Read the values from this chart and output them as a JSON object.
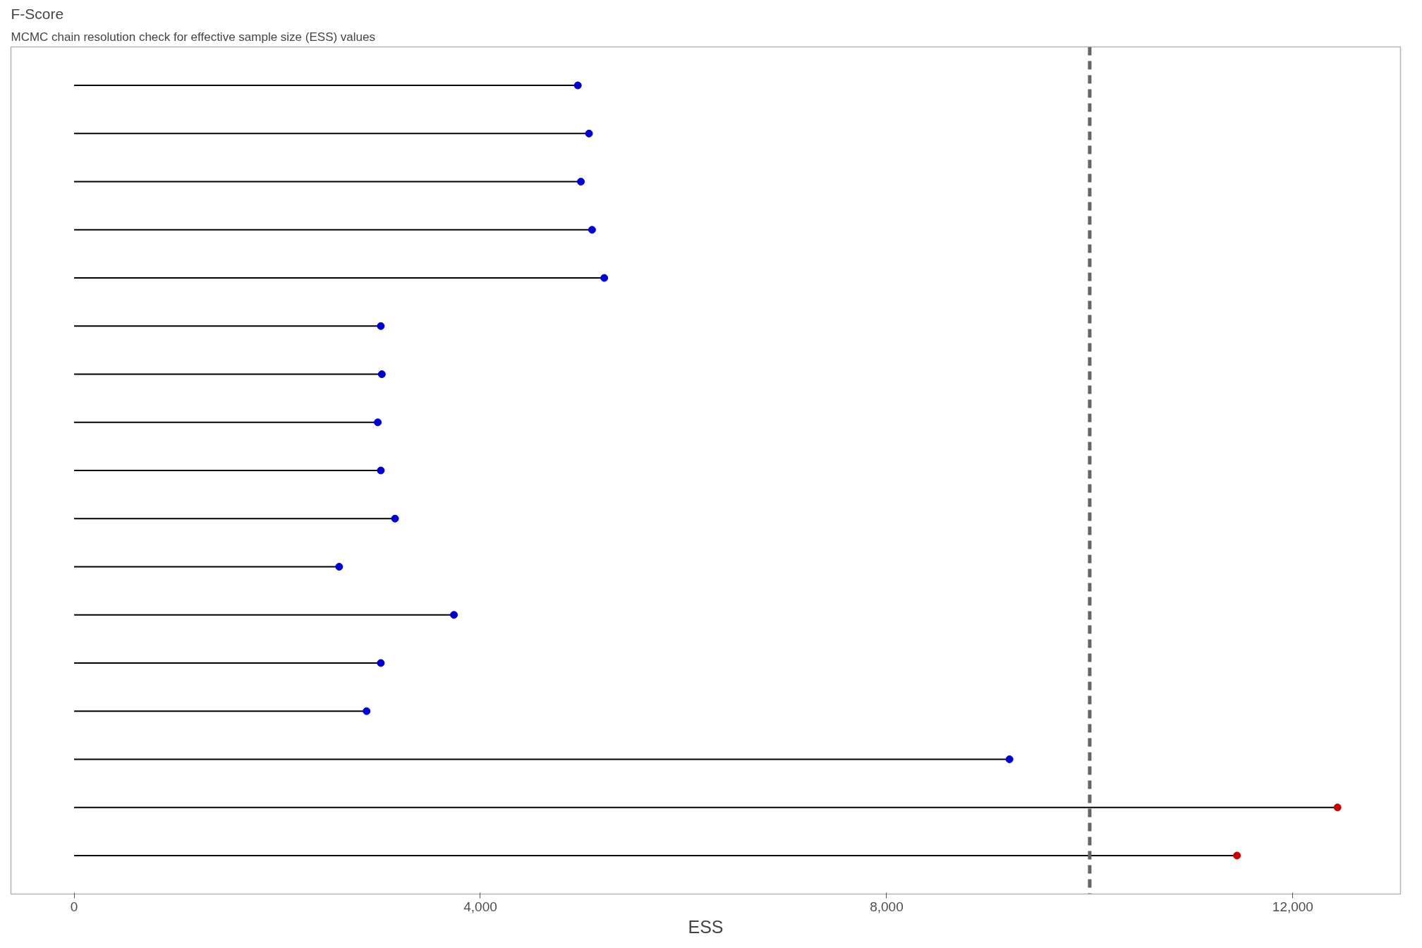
{
  "chart_data": {
    "type": "lollipop",
    "orientation": "horizontal",
    "title": "F-Score",
    "subtitle": "MCMC chain resolution check for effective sample size (ESS) values",
    "xlabel": "ESS",
    "categories": [
      null,
      null,
      null,
      null,
      null,
      null,
      null,
      null,
      null,
      null,
      null,
      null,
      null,
      null,
      null,
      null,
      null
    ],
    "values": [
      4960,
      5070,
      4990,
      5100,
      5220,
      3020,
      3030,
      2990,
      3020,
      3160,
      2610,
      3740,
      3020,
      2880,
      9210,
      12440,
      11450
    ],
    "colors": [
      "#0000cd",
      "#0000cd",
      "#0000cd",
      "#0000cd",
      "#0000cd",
      "#0000cd",
      "#0000cd",
      "#0000cd",
      "#0000cd",
      "#0000cd",
      "#0000cd",
      "#0000cd",
      "#0000cd",
      "#0000cd",
      "#0000cd",
      "#cd0000",
      "#cd0000"
    ],
    "xlim": [
      -622,
      13060
    ],
    "xticks": [
      {
        "value": 0,
        "label": "0"
      },
      {
        "value": 4000,
        "label": "4,000"
      },
      {
        "value": 8000,
        "label": "8,000"
      },
      {
        "value": 12000,
        "label": "12,000"
      }
    ],
    "ref_lines": [
      {
        "axis": "x",
        "value": 10000,
        "color": "#666666",
        "line_style": "dashed"
      }
    ],
    "marker": "circle",
    "grid": false,
    "tick_labels": "x"
  }
}
